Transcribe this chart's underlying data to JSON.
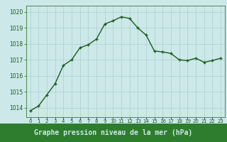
{
  "x": [
    0,
    1,
    2,
    3,
    4,
    5,
    6,
    7,
    8,
    9,
    10,
    11,
    12,
    13,
    14,
    15,
    16,
    17,
    18,
    19,
    20,
    21,
    22,
    23
  ],
  "y": [
    1013.8,
    1014.1,
    1014.8,
    1015.5,
    1016.65,
    1017.0,
    1017.75,
    1017.95,
    1018.3,
    1019.25,
    1019.45,
    1019.7,
    1019.6,
    1019.0,
    1018.55,
    1017.55,
    1017.5,
    1017.4,
    1017.0,
    1016.95,
    1017.1,
    1016.85,
    1016.95,
    1017.1
  ],
  "line_color": "#1a5c1a",
  "marker": "+",
  "marker_size": 3,
  "marker_color": "#1a5c1a",
  "bg_color": "#cce8e8",
  "grid_color": "#aad0d0",
  "title": "Graphe pression niveau de la mer (hPa)",
  "ylabel_ticks": [
    1014,
    1015,
    1016,
    1017,
    1018,
    1019,
    1020
  ],
  "ylim": [
    1013.4,
    1020.4
  ],
  "xlim": [
    -0.5,
    23.5
  ],
  "tick_color": "#1a5c1a",
  "tick_fontsize": 5.5,
  "spine_color": "#3a7a3a",
  "bottom_bar_color": "#2e7d2e",
  "bottom_bar_text_color": "#cce8e8",
  "line_width": 1.0,
  "title_fontsize": 7.0
}
